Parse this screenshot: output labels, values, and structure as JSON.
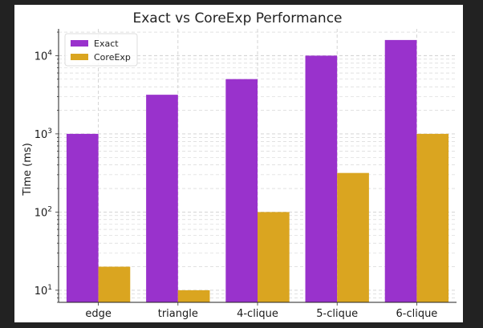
{
  "chart_data": {
    "type": "bar",
    "title": "Exact vs CoreExp Performance",
    "xlabel": "",
    "ylabel": "Time (ms)",
    "yscale": "log",
    "ylim": [
      7,
      22000
    ],
    "yticks": [
      {
        "value": 10,
        "base": "10",
        "exp": "1"
      },
      {
        "value": 100,
        "base": "10",
        "exp": "2"
      },
      {
        "value": 1000,
        "base": "10",
        "exp": "3"
      },
      {
        "value": 10000,
        "base": "10",
        "exp": "4"
      }
    ],
    "categories": [
      "edge",
      "triangle",
      "4-clique",
      "5-clique",
      "6-clique"
    ],
    "series": [
      {
        "name": "Exact",
        "color": "#9932CC",
        "values": [
          1000,
          3162,
          5012,
          10000,
          15849
        ]
      },
      {
        "name": "CoreExp",
        "color": "#DAA520",
        "values": [
          20,
          10,
          100,
          316,
          1000
        ]
      }
    ],
    "grid": true,
    "legend": "top-left"
  }
}
